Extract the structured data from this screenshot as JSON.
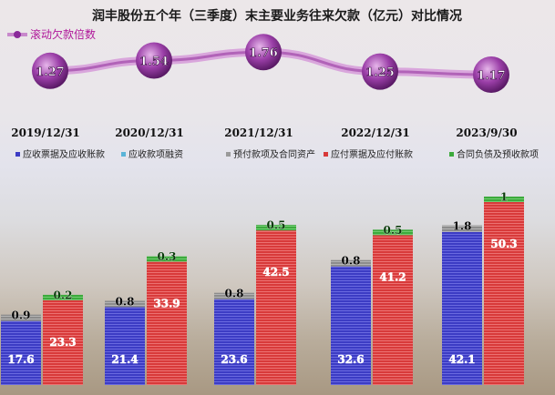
{
  "chart_data": {
    "type": "bar",
    "title": "润丰股份五个年（三季度）末主要业务往来欠款（亿元）对比情况",
    "categories": [
      "2019/12/31",
      "2020/12/31",
      "2021/12/31",
      "2022/12/31",
      "2023/9/30"
    ],
    "legend": [
      {
        "name": "应收票据及应收账款",
        "color": "#3c3cc4"
      },
      {
        "name": "应收款项融资",
        "color": "#5ab4d8"
      },
      {
        "name": "预付款项及合同资产",
        "color": "#9a9a9a"
      },
      {
        "name": "应付票据及应付账款",
        "color": "#d83a3a"
      },
      {
        "name": "合同负债及预收款项",
        "color": "#3caa3c"
      }
    ],
    "series": [
      {
        "name": "应收票据及应收账款",
        "stack": "receivable",
        "values": [
          17.6,
          21.4,
          23.6,
          32.6,
          42.1
        ]
      },
      {
        "name": "应收款项融资",
        "stack": "receivable",
        "values": [
          0,
          0,
          0,
          0,
          0
        ]
      },
      {
        "name": "预付款项及合同资产",
        "stack": "receivable",
        "values": [
          0.9,
          0.8,
          0.8,
          0.8,
          1.8
        ]
      },
      {
        "name": "应付票据及应付账款",
        "stack": "payable",
        "values": [
          23.3,
          33.9,
          42.5,
          41.2,
          50.3
        ]
      },
      {
        "name": "合同负债及预收款项",
        "stack": "payable",
        "values": [
          0.2,
          0.3,
          0.5,
          0.5,
          1.0
        ]
      }
    ],
    "ratio_series": {
      "name": "滚动欠款倍数",
      "values": [
        1.27,
        1.54,
        1.76,
        1.25,
        1.17
      ],
      "labels": [
        "1.27",
        "1.54",
        "1.76",
        "1.25",
        "1.17"
      ]
    },
    "ylim": [
      0,
      52
    ],
    "grid": false,
    "legend_position": "top"
  },
  "colors": {
    "title": "#1a1a1a",
    "receivable": "#3c3cc4",
    "prepaid": "#9a9a9a",
    "payable": "#d83a3a",
    "contract": "#3caa3c",
    "ratio_line": "#b06ab0",
    "ratio_marker": "#7a2a8a"
  }
}
